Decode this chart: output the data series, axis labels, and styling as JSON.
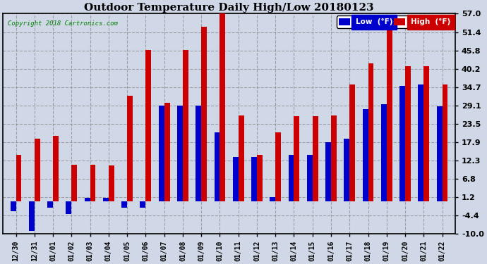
{
  "title": "Outdoor Temperature Daily High/Low 20180123",
  "copyright": "Copyright 2018 Cartronics.com",
  "dates": [
    "12/30",
    "12/31",
    "01/01",
    "01/02",
    "01/03",
    "01/04",
    "01/05",
    "01/06",
    "01/07",
    "01/08",
    "01/09",
    "01/10",
    "01/11",
    "01/12",
    "01/13",
    "01/14",
    "01/15",
    "01/16",
    "01/17",
    "01/18",
    "01/19",
    "01/20",
    "01/21",
    "01/22"
  ],
  "high": [
    14.0,
    19.0,
    19.9,
    11.0,
    11.0,
    10.9,
    32.0,
    46.0,
    30.0,
    46.0,
    53.0,
    57.0,
    26.0,
    14.0,
    21.0,
    25.9,
    25.9,
    26.0,
    35.5,
    41.9,
    53.5,
    41.0,
    41.0,
    35.5
  ],
  "low": [
    -3.0,
    -9.0,
    -2.0,
    -3.9,
    0.9,
    0.9,
    -2.0,
    -1.9,
    29.0,
    29.0,
    29.0,
    21.0,
    13.5,
    13.5,
    1.2,
    14.0,
    14.0,
    18.0,
    19.0,
    28.0,
    29.5,
    35.0,
    35.5,
    28.9
  ],
  "ylim": [
    -10.0,
    57.0
  ],
  "yticks": [
    -10.0,
    -4.4,
    1.2,
    6.8,
    12.3,
    17.9,
    23.5,
    29.1,
    34.7,
    40.2,
    45.8,
    51.4,
    57.0
  ],
  "low_color": "#0000cc",
  "high_color": "#cc0000",
  "bg_color": "#d0d8e8",
  "plot_bg_color": "#d0d8e8",
  "grid_color": "#888888",
  "title_fontsize": 11,
  "legend_low_label": "Low  (°F)",
  "legend_high_label": "High  (°F)",
  "bar_width": 0.3,
  "figsize": [
    6.9,
    3.75
  ],
  "dpi": 100
}
